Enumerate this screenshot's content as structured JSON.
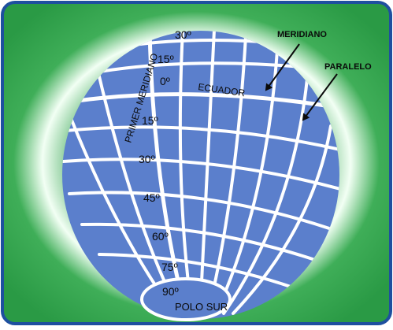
{
  "colors": {
    "frame_border": "#1e4f9f",
    "background_edge": "#2e9e4a",
    "background_glow": "#f2fff4",
    "globe": "#5b7fcc",
    "grid_lines": "#ffffff",
    "text": "#0a0a0a"
  },
  "labels": {
    "prime_meridian": "PRIMER MERIDIANO",
    "equator": "ECUADOR",
    "meridian": "MERIDIANO",
    "parallel": "PARALELO",
    "south_pole": "POLO SUR"
  },
  "latitudes": {
    "lat_30_north": "30º",
    "lat_15_north": "15º",
    "lat_0": "0º",
    "lat_15_south": "15º",
    "lat_30_south": "30º",
    "lat_45_south": "45º",
    "lat_60_south": "60º",
    "lat_75_south": "75º",
    "lat_90_south": "90º"
  }
}
